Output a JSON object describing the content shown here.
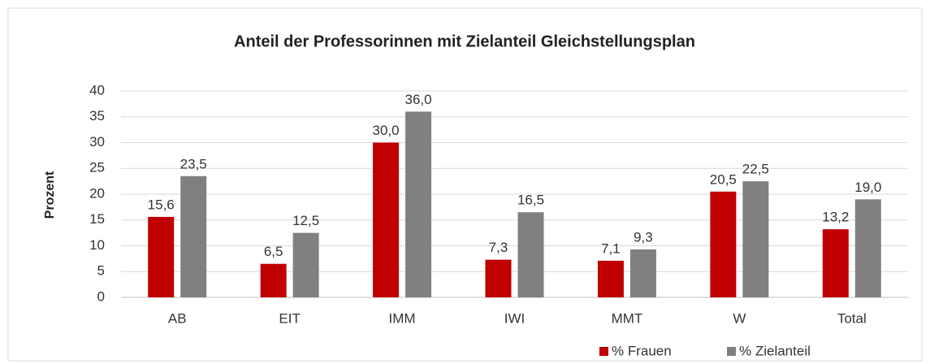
{
  "chart_data": {
    "type": "bar",
    "title": "Anteil der Professorinnen mit Zielanteil Gleichstellungsplan",
    "y_label": "Prozent",
    "categories": [
      "AB",
      "EIT",
      "IMM",
      "IWI",
      "MMT",
      "W",
      "Total"
    ],
    "series": [
      {
        "name": "% Frauen",
        "color": "#c00000",
        "values": [
          15.6,
          6.5,
          30.0,
          7.3,
          7.1,
          20.5,
          13.2
        ],
        "value_labels": [
          "15,6",
          "6,5",
          "30,0",
          "7,3",
          "7,1",
          "20,5",
          "13,2"
        ]
      },
      {
        "name": "% Zielanteil",
        "color": "#808080",
        "values": [
          23.5,
          12.5,
          36.0,
          16.5,
          9.3,
          22.5,
          19.0
        ],
        "value_labels": [
          "23,5",
          "12,5",
          "36,0",
          "16,5",
          "9,3",
          "22,5",
          "19,0"
        ]
      }
    ],
    "ylim": [
      0,
      40
    ],
    "yticks": [
      0,
      5,
      10,
      15,
      20,
      25,
      30,
      35,
      40
    ],
    "grid": true,
    "legend": "bottom"
  }
}
